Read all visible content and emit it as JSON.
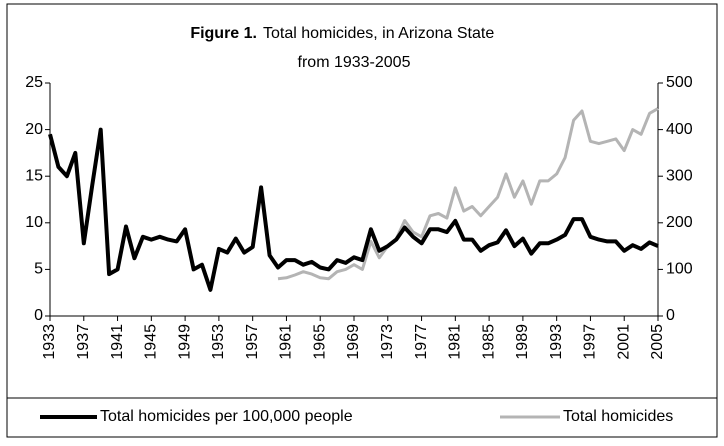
{
  "chart_data": {
    "type": "line",
    "title_label": "Figure 1.",
    "title": "Total homicides, in Arizona State",
    "subtitle": "from 1933-2005",
    "x": [
      1933,
      1934,
      1935,
      1936,
      1937,
      1938,
      1939,
      1940,
      1941,
      1942,
      1943,
      1944,
      1945,
      1946,
      1947,
      1948,
      1949,
      1950,
      1951,
      1952,
      1953,
      1954,
      1955,
      1956,
      1957,
      1958,
      1959,
      1960,
      1961,
      1962,
      1963,
      1964,
      1965,
      1966,
      1967,
      1968,
      1969,
      1970,
      1971,
      1972,
      1973,
      1974,
      1975,
      1976,
      1977,
      1978,
      1979,
      1980,
      1981,
      1982,
      1983,
      1984,
      1985,
      1986,
      1987,
      1988,
      1989,
      1990,
      1991,
      1992,
      1993,
      1994,
      1995,
      1996,
      1997,
      1998,
      1999,
      2000,
      2001,
      2002,
      2003,
      2004,
      2005
    ],
    "xlim": [
      1933,
      2005
    ],
    "xticks": [
      1933,
      1937,
      1941,
      1945,
      1949,
      1953,
      1957,
      1961,
      1965,
      1969,
      1973,
      1977,
      1981,
      1985,
      1989,
      1993,
      1997,
      2001,
      2005
    ],
    "ylim": [
      0,
      25
    ],
    "yticks": [
      0,
      5,
      10,
      15,
      20,
      25
    ],
    "y2lim": [
      0,
      500
    ],
    "y2ticks": [
      0,
      100,
      200,
      300,
      400,
      500
    ],
    "series": [
      {
        "name": "Total homicides per 100,000 people",
        "color": "#000000",
        "values": [
          19.5,
          16,
          15,
          17.5,
          7.8,
          14,
          20,
          4.5,
          5,
          9.6,
          6.2,
          8.5,
          8.2,
          8.5,
          8.2,
          8,
          9.3,
          5,
          5.5,
          2.8,
          7.2,
          6.8,
          8.3,
          6.8,
          7.4,
          13.8,
          6.5,
          5.2,
          6,
          6,
          5.5,
          5.8,
          5.2,
          5,
          6,
          5.7,
          6.3,
          6,
          9.3,
          7,
          7.5,
          8.2,
          9.5,
          8.5,
          7.8,
          9.3,
          9.3,
          9,
          10.2,
          8.2,
          8.2,
          7,
          7.6,
          7.9,
          9.2,
          7.5,
          8.3,
          6.7,
          7.8,
          7.8,
          8.2,
          8.7,
          10.4,
          10.4,
          8.5,
          8.2,
          8,
          8,
          7,
          7.6,
          7.2,
          7.9,
          7.5
        ]
      },
      {
        "name": "Total homicides",
        "color": "#b4b4b4",
        "axis": "y2",
        "values": [
          null,
          null,
          null,
          null,
          null,
          null,
          null,
          null,
          null,
          null,
          null,
          null,
          null,
          null,
          null,
          null,
          null,
          null,
          null,
          null,
          null,
          null,
          null,
          null,
          null,
          null,
          null,
          80,
          82,
          88,
          95,
          90,
          82,
          80,
          95,
          100,
          110,
          100,
          160,
          125,
          150,
          165,
          205,
          180,
          170,
          215,
          220,
          210,
          275,
          225,
          235,
          215,
          235,
          255,
          305,
          255,
          290,
          240,
          290,
          290,
          305,
          340,
          420,
          440,
          375,
          370,
          375,
          380,
          355,
          400,
          390,
          435,
          445
        ]
      }
    ]
  }
}
